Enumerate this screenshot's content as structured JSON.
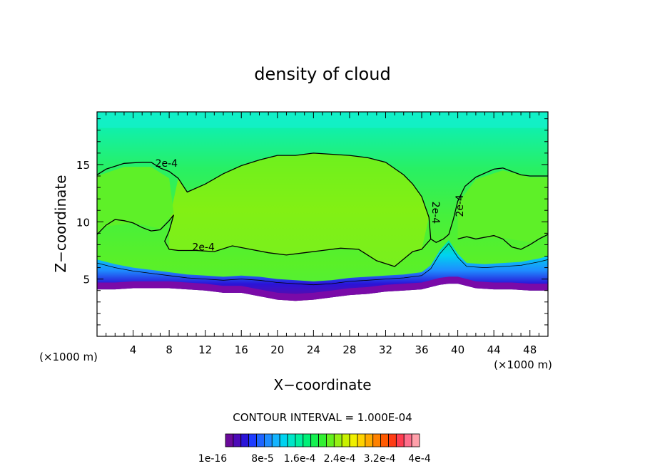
{
  "chart_data": {
    "type": "heatmap",
    "title": "density of cloud",
    "xlabel": "X−coordinate",
    "ylabel": "Z−coordinate",
    "x_unit": "(×1000 m)",
    "x_unit_right": "(×1000 m)",
    "xlim": [
      0,
      50
    ],
    "ylim": [
      0,
      19.6
    ],
    "x_ticks": [
      4,
      8,
      12,
      16,
      20,
      24,
      28,
      32,
      36,
      40,
      44,
      48
    ],
    "y_ticks": [
      5,
      10,
      15
    ],
    "contour_interval_text": "CONTOUR INTERVAL = 1.000E-04",
    "contour_level_label": "2e-4",
    "colorbar_labels": [
      "1e-16",
      "8e-5",
      "1.6e-4",
      "2.4e-4",
      "3.2e-4",
      "4e-4"
    ],
    "colorbar_colors": [
      "#6a0a9a",
      "#4d0ab8",
      "#2a14d8",
      "#1e3cff",
      "#1e64ff",
      "#1e8cff",
      "#14b4ff",
      "#00d2f0",
      "#00e6c8",
      "#00f0a0",
      "#00f078",
      "#14f050",
      "#32f032",
      "#64f01e",
      "#96f014",
      "#c8f000",
      "#f0f000",
      "#ffd200",
      "#ffaa00",
      "#ff8200",
      "#ff5a00",
      "#ff3c14",
      "#ff3c50",
      "#ff6e8c",
      "#ffa0aa"
    ],
    "cloud_bottom": [
      [
        0,
        4.1
      ],
      [
        2,
        4.1
      ],
      [
        4,
        4.2
      ],
      [
        6,
        4.2
      ],
      [
        8,
        4.2
      ],
      [
        10,
        4.1
      ],
      [
        12,
        4.0
      ],
      [
        14,
        3.8
      ],
      [
        16,
        3.8
      ],
      [
        18,
        3.5
      ],
      [
        20,
        3.2
      ],
      [
        22,
        3.1
      ],
      [
        24,
        3.2
      ],
      [
        26,
        3.4
      ],
      [
        28,
        3.6
      ],
      [
        30,
        3.7
      ],
      [
        32,
        3.9
      ],
      [
        34,
        4.0
      ],
      [
        36,
        4.1
      ],
      [
        37,
        4.3
      ],
      [
        38,
        4.5
      ],
      [
        39,
        4.6
      ],
      [
        40,
        4.6
      ],
      [
        42,
        4.2
      ],
      [
        44,
        4.1
      ],
      [
        46,
        4.1
      ],
      [
        48,
        4.0
      ],
      [
        50,
        4.0
      ]
    ],
    "contour_2e4": [
      [
        [
          0,
          14.1
        ],
        [
          1,
          14.6
        ],
        [
          3,
          15.1
        ],
        [
          5,
          15.2
        ],
        [
          6,
          15.2
        ],
        [
          7,
          14.7
        ],
        [
          8,
          14.4
        ],
        [
          9,
          13.8
        ],
        [
          10,
          12.6
        ],
        [
          12,
          13.3
        ],
        [
          14,
          14.2
        ],
        [
          16,
          14.9
        ],
        [
          18,
          15.4
        ],
        [
          20,
          15.8
        ],
        [
          22,
          15.8
        ],
        [
          24,
          16.0
        ],
        [
          26,
          15.9
        ],
        [
          28,
          15.8
        ],
        [
          30,
          15.6
        ],
        [
          32,
          15.2
        ],
        [
          34,
          14.1
        ],
        [
          35,
          13.3
        ],
        [
          36,
          12.2
        ],
        [
          36.8,
          10.4
        ],
        [
          37,
          8.5
        ],
        [
          37.6,
          8.2
        ],
        [
          38.4,
          8.5
        ],
        [
          39,
          8.9
        ],
        [
          39.5,
          10.2
        ],
        [
          40,
          11.8
        ],
        [
          40.8,
          13.1
        ],
        [
          42,
          13.9
        ],
        [
          44,
          14.6
        ],
        [
          45,
          14.7
        ],
        [
          46,
          14.4
        ],
        [
          47,
          14.1
        ],
        [
          48,
          14.0
        ],
        [
          50,
          14.0
        ]
      ],
      [
        [
          0,
          8.9
        ],
        [
          1,
          9.7
        ],
        [
          2,
          10.2
        ],
        [
          3,
          10.1
        ],
        [
          4,
          9.9
        ],
        [
          5,
          9.5
        ],
        [
          6,
          9.2
        ],
        [
          7,
          9.3
        ],
        [
          8,
          10.1
        ],
        [
          8.5,
          10.6
        ],
        [
          8,
          9.2
        ],
        [
          7.5,
          8.3
        ],
        [
          8,
          7.6
        ],
        [
          9,
          7.5
        ],
        [
          11,
          7.5
        ],
        [
          13,
          7.4
        ],
        [
          15,
          7.9
        ],
        [
          17,
          7.6
        ],
        [
          19,
          7.3
        ],
        [
          21,
          7.1
        ],
        [
          23,
          7.3
        ],
        [
          25,
          7.5
        ],
        [
          27,
          7.7
        ],
        [
          29,
          7.6
        ],
        [
          31,
          6.6
        ],
        [
          33,
          6.1
        ],
        [
          35,
          7.4
        ],
        [
          36,
          7.6
        ],
        [
          37,
          8.5
        ]
      ],
      [
        [
          40,
          8.5
        ],
        [
          41,
          8.7
        ],
        [
          42,
          8.5
        ],
        [
          44,
          8.8
        ],
        [
          45,
          8.5
        ],
        [
          46,
          7.8
        ],
        [
          47,
          7.6
        ],
        [
          48,
          8.0
        ],
        [
          49,
          8.5
        ],
        [
          50,
          8.9
        ]
      ]
    ],
    "contour_labels": [
      {
        "x": 7.7,
        "y": 14.8,
        "text": "2e-4"
      },
      {
        "x": 11.8,
        "y": 7.5,
        "text": "2e-4"
      },
      {
        "x": 37.2,
        "y": 10.8,
        "text": "2e-4"
      },
      {
        "x": 40.6,
        "y": 11.4,
        "text": "2e-4"
      }
    ]
  }
}
